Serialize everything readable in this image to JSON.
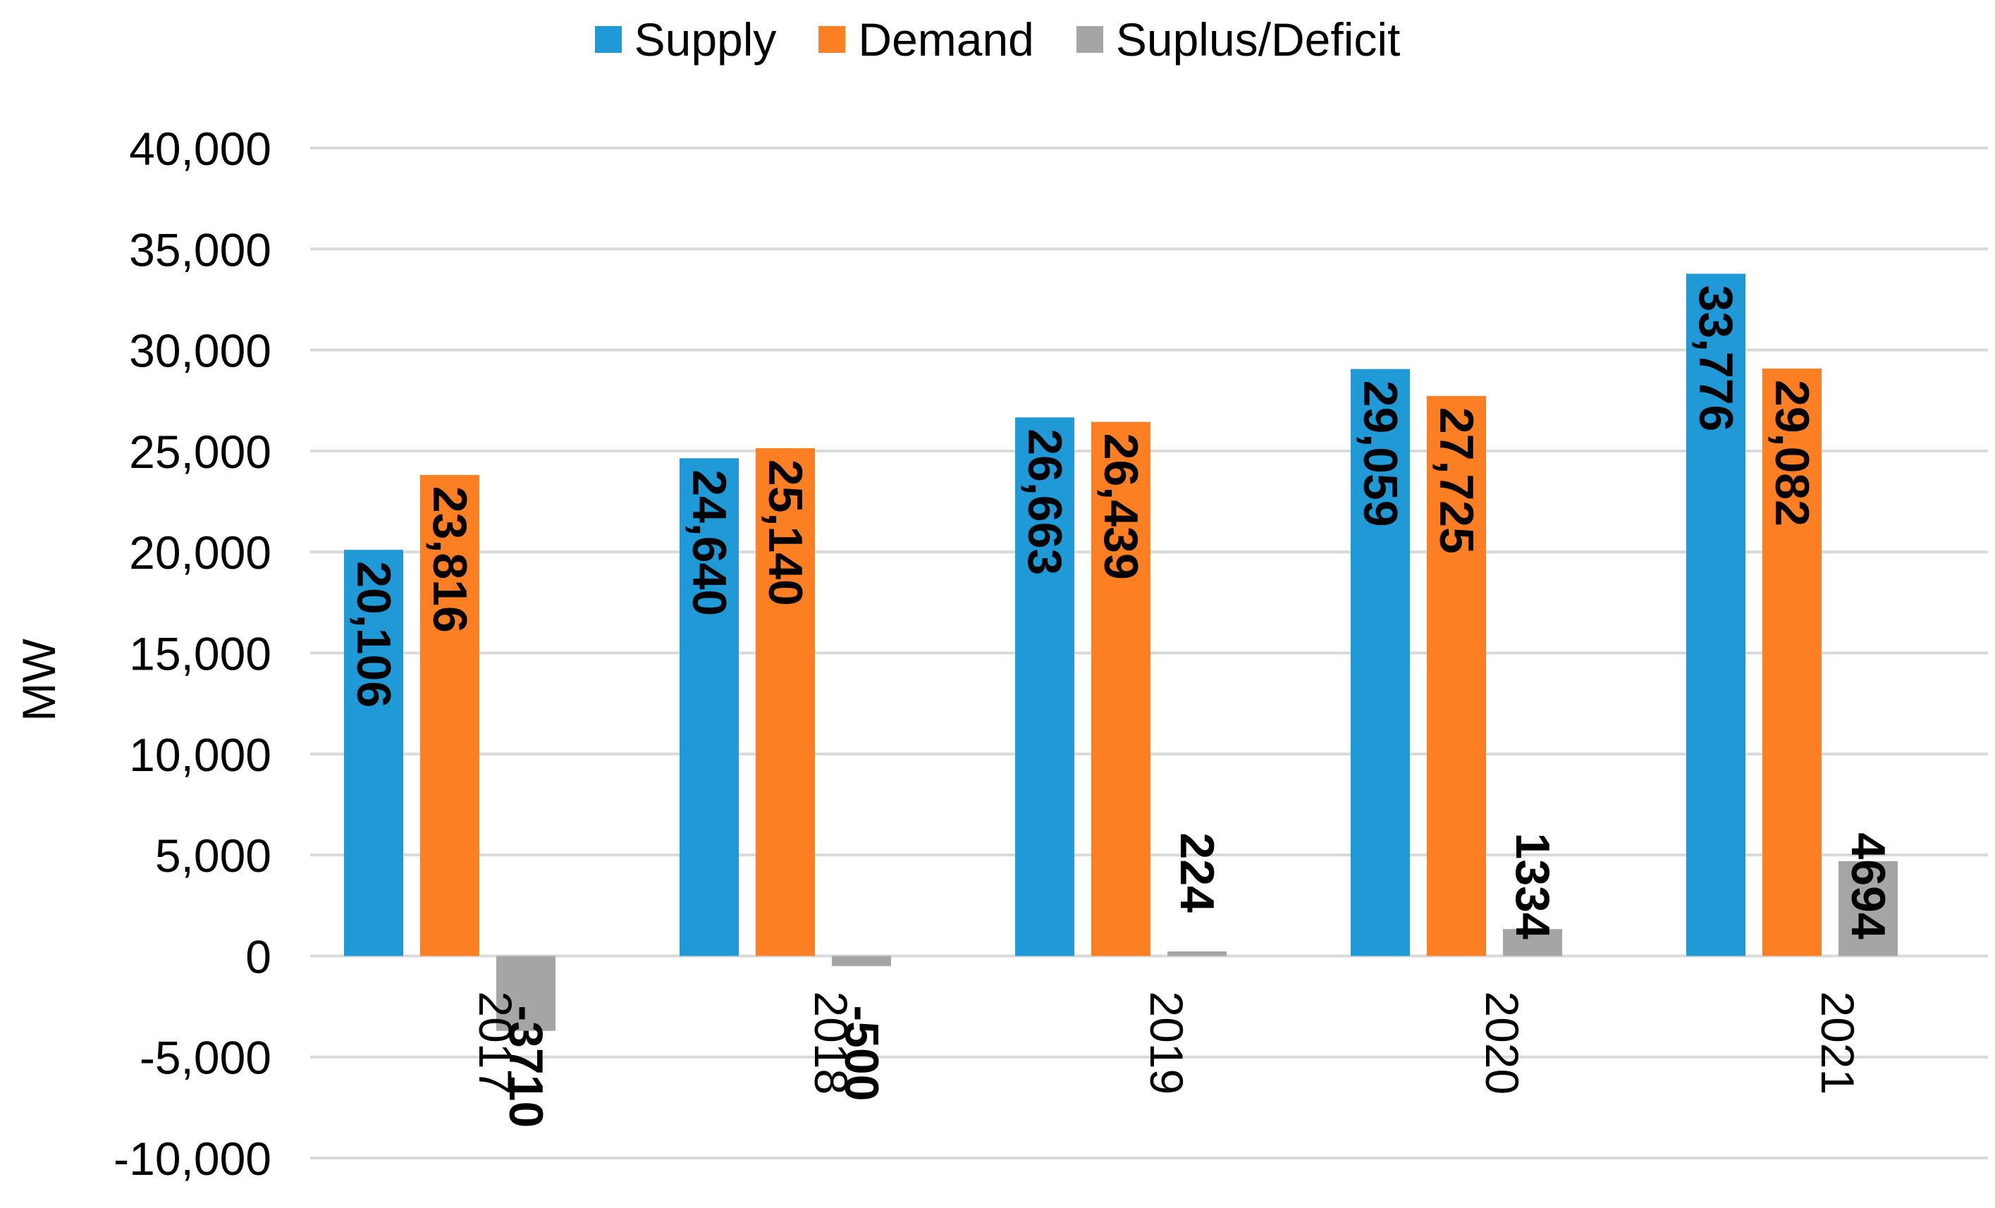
{
  "chart_data": {
    "type": "bar",
    "title": "",
    "xlabel": "",
    "ylabel": "MW",
    "ylim": [
      -10000,
      40000
    ],
    "y_ticks": [
      40000,
      35000,
      30000,
      25000,
      20000,
      15000,
      10000,
      5000,
      0,
      -5000,
      -10000
    ],
    "y_tick_labels": [
      "40,000",
      "35,000",
      "30,000",
      "25,000",
      "20,000",
      "15,000",
      "10,000",
      "5,000",
      "0",
      "-5,000",
      "-10,000"
    ],
    "grid": true,
    "legend_position": "top-center",
    "categories": [
      "2017",
      "2018",
      "2019",
      "2020",
      "2021"
    ],
    "series": [
      {
        "name": "Supply",
        "color": "#1f9ad6",
        "values": [
          20106,
          24640,
          26663,
          29059,
          33776
        ],
        "labels": [
          "20,106",
          "24,640",
          "26,663",
          "29,059",
          "33,776"
        ]
      },
      {
        "name": "Demand",
        "color": "#fd7f23",
        "values": [
          23816,
          25140,
          26439,
          27725,
          29082
        ],
        "labels": [
          "23,816",
          "25,140",
          "26,439",
          "27,725",
          "29,082"
        ]
      },
      {
        "name": "Suplus/Deficit",
        "color": "#a5a5a5",
        "values": [
          -3710,
          -500,
          224,
          1334,
          4694
        ],
        "labels": [
          "-3710",
          "-500",
          "224",
          "1334",
          "4694"
        ]
      }
    ]
  }
}
